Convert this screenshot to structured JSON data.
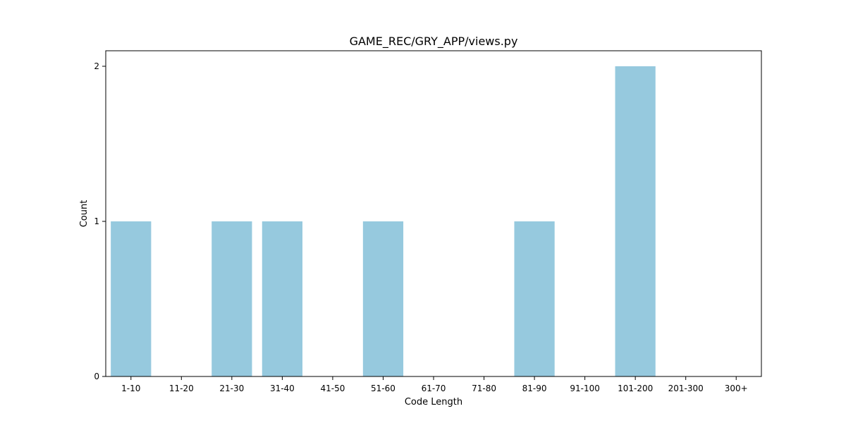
{
  "chart_data": {
    "type": "bar",
    "title": "GAME_REC/GRY_APP/views.py",
    "xlabel": "Code Length",
    "ylabel": "Count",
    "categories": [
      "1-10",
      "11-20",
      "21-30",
      "31-40",
      "41-50",
      "51-60",
      "61-70",
      "71-80",
      "81-90",
      "91-100",
      "101-200",
      "201-300",
      "300+"
    ],
    "values": [
      1,
      0,
      1,
      1,
      0,
      1,
      0,
      0,
      1,
      0,
      2,
      0,
      0
    ],
    "yticks": [
      0,
      1,
      2
    ],
    "ylim": [
      0,
      2.1
    ],
    "grid": false,
    "bar_color": "#96c9de"
  }
}
